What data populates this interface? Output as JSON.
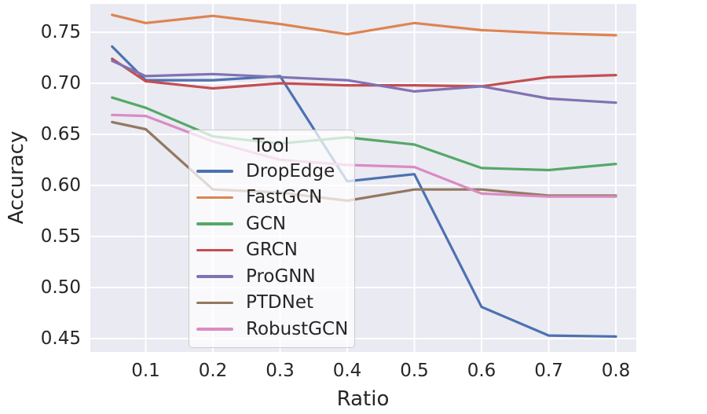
{
  "chart_data": {
    "type": "line",
    "title": "",
    "xlabel": "Ratio",
    "ylabel": "Accuracy",
    "legend_title": "Tool",
    "legend_position": "center left",
    "grid": true,
    "plot_bg": "#eaeaf2",
    "grid_color": "#ffffff",
    "text_color": "#262626",
    "xlim": [
      0.0176,
      0.8298
    ],
    "ylim": [
      0.437,
      0.778
    ],
    "x_ticks": [
      0.1,
      0.2,
      0.3,
      0.4,
      0.5,
      0.6,
      0.7,
      0.8
    ],
    "y_ticks": [
      0.45,
      0.5,
      0.55,
      0.6,
      0.65,
      0.7,
      0.75
    ],
    "x": [
      0.05,
      0.1,
      0.2,
      0.3,
      0.4,
      0.5,
      0.6,
      0.7,
      0.8
    ],
    "series": [
      {
        "name": "DropEdge",
        "color": "#4C72B0",
        "values": [
          0.736,
          0.703,
          0.703,
          0.707,
          0.604,
          0.611,
          0.481,
          0.453,
          0.452
        ]
      },
      {
        "name": "FastGCN",
        "color": "#DD8452",
        "values": [
          0.767,
          0.759,
          0.766,
          0.758,
          0.748,
          0.759,
          0.752,
          0.749,
          0.747
        ]
      },
      {
        "name": "GCN",
        "color": "#55A868",
        "values": [
          0.686,
          0.676,
          0.648,
          0.641,
          0.647,
          0.64,
          0.617,
          0.615,
          0.621
        ]
      },
      {
        "name": "GRCN",
        "color": "#C44E52",
        "values": [
          0.724,
          0.702,
          0.695,
          0.7,
          0.698,
          0.698,
          0.697,
          0.706,
          0.708
        ]
      },
      {
        "name": "ProGNN",
        "color": "#8172B3",
        "values": [
          0.722,
          0.707,
          0.709,
          0.706,
          0.703,
          0.692,
          0.697,
          0.685,
          0.681
        ]
      },
      {
        "name": "PTDNet",
        "color": "#937860",
        "values": [
          0.662,
          0.655,
          0.596,
          0.593,
          0.585,
          0.596,
          0.596,
          0.59,
          0.59
        ]
      },
      {
        "name": "RobustGCN",
        "color": "#DA8BC3",
        "values": [
          0.669,
          0.668,
          0.643,
          0.625,
          0.62,
          0.618,
          0.592,
          0.589,
          0.589
        ]
      }
    ]
  }
}
